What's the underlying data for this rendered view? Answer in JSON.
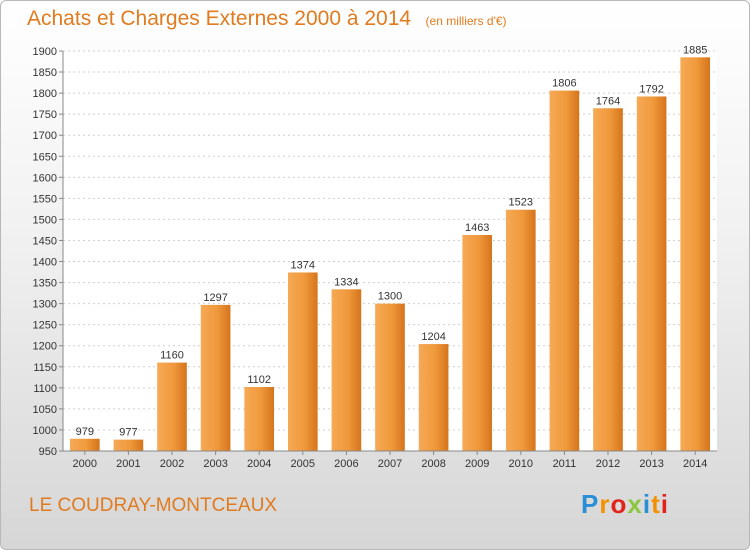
{
  "chart_data": {
    "type": "bar",
    "title": "Achats et Charges Externes 2000 à 2014",
    "unit": "(en milliers d'€)",
    "categories": [
      "2000",
      "2001",
      "2002",
      "2003",
      "2004",
      "2005",
      "2006",
      "2007",
      "2008",
      "2009",
      "2010",
      "2011",
      "2012",
      "2013",
      "2014"
    ],
    "values": [
      979,
      977,
      1160,
      1297,
      1102,
      1374,
      1334,
      1300,
      1204,
      1463,
      1523,
      1806,
      1764,
      1792,
      1885
    ],
    "ylim": [
      950,
      1900
    ],
    "yticks": [
      "950",
      "1000",
      "1050",
      "1100",
      "1150",
      "1200",
      "1250",
      "1300",
      "1350",
      "1400",
      "1450",
      "1500",
      "1550",
      "1600",
      "1650",
      "1700",
      "1750",
      "1800",
      "1850",
      "1900"
    ],
    "grid": true,
    "bar_color": "#f0993c"
  },
  "place_name": "LE COUDRAY-MONTCEAUX",
  "brand": {
    "letters": [
      "P",
      "r",
      "o",
      "x",
      "i",
      "t",
      "i"
    ],
    "colors": [
      "#2a8fd6",
      "#f39200",
      "#e2231a",
      "#8cc63f",
      "#2a8fd6",
      "#f39200",
      "#e2231a"
    ]
  }
}
